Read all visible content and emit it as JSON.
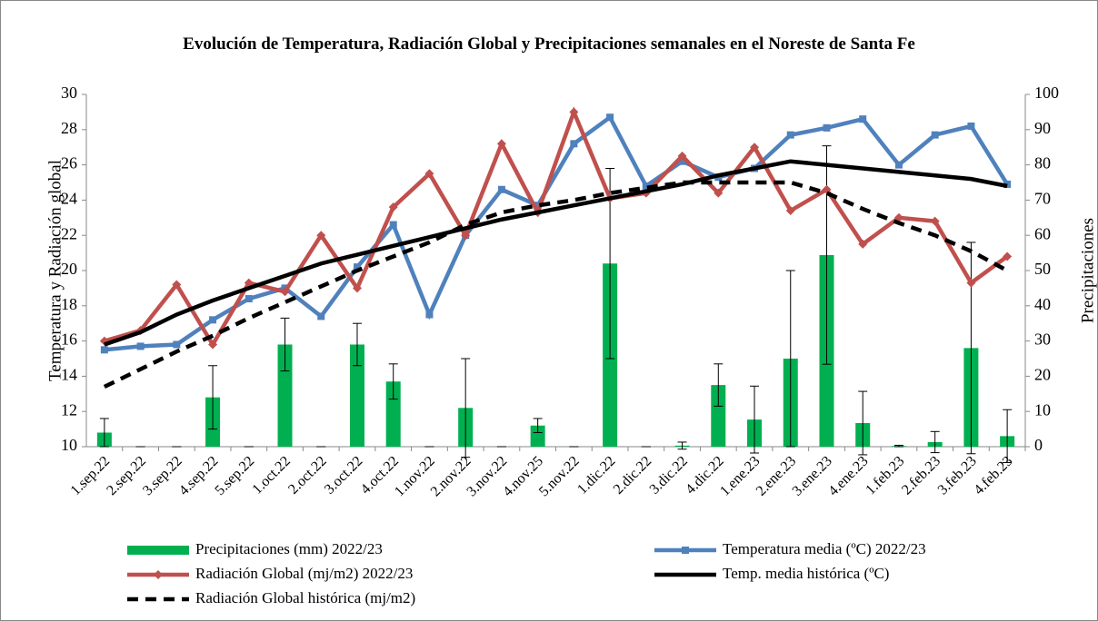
{
  "chart_data": {
    "type": "combo",
    "title": "Evolución de Temperatura, Radiación Global y Precipitaciones semanales en el Noreste de Santa Fe",
    "ylabel": "Temperatura y Radiación global",
    "y2label": "Precipitaciones",
    "categories": [
      "1.sep.22",
      "2.sep.22",
      "3.sep.22",
      "4.sep.22",
      "5.sep.22",
      "1.oct.22",
      "2.oct.22",
      "3.oct.22",
      "4.oct.22",
      "1.nov.22",
      "2.nov.22",
      "3.nov.22",
      "4.nov.25",
      "5.nov.22",
      "1.dic.22",
      "2.dic.22",
      "3.dic.22",
      "4.dic.22",
      "1.ene.23",
      "2.ene.23",
      "3.ene.23",
      "4.ene.23",
      "1.feb.23",
      "2.feb.23",
      "3.feb.23",
      "4.feb.23"
    ],
    "ylim": [
      10,
      30
    ],
    "yticks": [
      10,
      12,
      14,
      16,
      18,
      20,
      22,
      24,
      26,
      28,
      30
    ],
    "y2lim": [
      0,
      100
    ],
    "y2ticks": [
      0,
      10,
      20,
      30,
      40,
      50,
      60,
      70,
      80,
      90,
      100
    ],
    "series": [
      {
        "name": "Precipitaciones (mm) 2022/23",
        "type": "bar",
        "axis": "y2",
        "color": "#00b050",
        "values": [
          4,
          0,
          0,
          14,
          0,
          29,
          0,
          29,
          18.5,
          0,
          11,
          0,
          6,
          0,
          52,
          0,
          0.3,
          17.5,
          7.7,
          25,
          54.4,
          6.7,
          0.2,
          1.3,
          28,
          3
        ],
        "errors": [
          4,
          0,
          0,
          9,
          0,
          7.5,
          0,
          6,
          5,
          0,
          14,
          0,
          2,
          0,
          27,
          0,
          1,
          6,
          9.5,
          25,
          31,
          9,
          0.2,
          3,
          30,
          7.5
        ]
      },
      {
        "name": "Temperatura media (ºC) 2022/23",
        "type": "line",
        "color": "#4f81bd",
        "marker": "square",
        "values": [
          15.5,
          15.7,
          15.8,
          17.2,
          18.4,
          19.0,
          17.4,
          20.2,
          22.6,
          17.5,
          22.0,
          24.6,
          23.7,
          27.2,
          28.7,
          24.8,
          26.2,
          25.3,
          25.8,
          27.7,
          28.1,
          28.6,
          26.0,
          27.7,
          28.2,
          24.9
        ]
      },
      {
        "name": "Radiación Global (mj/m2) 2022/23",
        "type": "line",
        "color": "#c0504d",
        "marker": "diamond",
        "values": [
          16.0,
          16.6,
          19.2,
          15.8,
          19.3,
          18.8,
          22.0,
          19.0,
          23.6,
          25.5,
          22.0,
          27.2,
          23.3,
          29.0,
          24.1,
          24.4,
          26.5,
          24.4,
          27.0,
          23.4,
          24.6,
          21.5,
          23.0,
          22.8,
          19.3,
          20.8
        ]
      },
      {
        "name": "Temp. media histórica (ºC)",
        "type": "line",
        "color": "#000000",
        "values": [
          15.8,
          16.5,
          17.5,
          18.3,
          19.0,
          19.7,
          20.4,
          20.9,
          21.4,
          21.9,
          22.4,
          22.9,
          23.3,
          23.7,
          24.1,
          24.5,
          24.9,
          25.4,
          25.8,
          26.2,
          26.0,
          25.8,
          25.6,
          25.4,
          25.2,
          24.8
        ]
      },
      {
        "name": "Radiación Global histórica (mj/m2)",
        "type": "line",
        "color": "#000000",
        "dash": true,
        "values": [
          13.4,
          14.4,
          15.4,
          16.3,
          17.3,
          18.2,
          19.1,
          20.0,
          20.8,
          21.6,
          22.6,
          23.3,
          23.7,
          24.0,
          24.4,
          24.7,
          25.0,
          25.0,
          25.0,
          25.0,
          24.4,
          23.5,
          22.7,
          22.0,
          21.1,
          20.0
        ]
      }
    ]
  }
}
